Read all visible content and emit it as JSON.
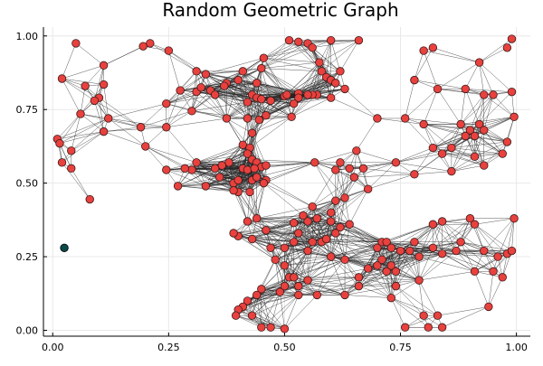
{
  "chart_data": {
    "type": "scatter",
    "title": "Random Geometric Graph",
    "xlabel": "",
    "ylabel": "",
    "xlim": [
      -0.02,
      1.03
    ],
    "ylim": [
      -0.02,
      1.03
    ],
    "grid": true,
    "legend": "none",
    "x_ticks": [
      {
        "value": 0.0,
        "label": "0.00"
      },
      {
        "value": 0.25,
        "label": "0.25"
      },
      {
        "value": 0.5,
        "label": "0.50"
      },
      {
        "value": 0.75,
        "label": "0.75"
      },
      {
        "value": 1.0,
        "label": "1.00"
      }
    ],
    "y_ticks": [
      {
        "value": 0.0,
        "label": "0.00"
      },
      {
        "value": 0.25,
        "label": "0.25"
      },
      {
        "value": 0.5,
        "label": "0.50"
      },
      {
        "value": 0.75,
        "label": "0.75"
      },
      {
        "value": 1.0,
        "label": "1.00"
      }
    ],
    "edge_threshold": 0.14,
    "colors": {
      "node": "#e8413e",
      "node_stroke": "#3a1a1a",
      "isolated_node": "#0b4a4a",
      "edge": "#222222",
      "grid": "#e8e8e8",
      "axis": "#000000"
    },
    "isolated_nodes": [
      [
        0.025,
        0.28
      ]
    ],
    "nodes": [
      [
        0.05,
        0.975
      ],
      [
        0.02,
        0.855
      ],
      [
        0.11,
        0.9
      ],
      [
        0.1,
        0.79
      ],
      [
        0.11,
        0.835
      ],
      [
        0.07,
        0.83
      ],
      [
        0.09,
        0.78
      ],
      [
        0.06,
        0.735
      ],
      [
        0.12,
        0.72
      ],
      [
        0.11,
        0.675
      ],
      [
        0.01,
        0.65
      ],
      [
        0.015,
        0.635
      ],
      [
        0.04,
        0.61
      ],
      [
        0.02,
        0.57
      ],
      [
        0.04,
        0.55
      ],
      [
        0.08,
        0.445
      ],
      [
        0.195,
        0.965
      ],
      [
        0.21,
        0.975
      ],
      [
        0.25,
        0.95
      ],
      [
        0.19,
        0.69
      ],
      [
        0.2,
        0.625
      ],
      [
        0.245,
        0.69
      ],
      [
        0.245,
        0.77
      ],
      [
        0.245,
        0.545
      ],
      [
        0.275,
        0.815
      ],
      [
        0.31,
        0.88
      ],
      [
        0.33,
        0.87
      ],
      [
        0.3,
        0.745
      ],
      [
        0.31,
        0.81
      ],
      [
        0.32,
        0.825
      ],
      [
        0.34,
        0.815
      ],
      [
        0.35,
        0.8
      ],
      [
        0.375,
        0.84
      ],
      [
        0.37,
        0.83
      ],
      [
        0.4,
        0.85
      ],
      [
        0.375,
        0.72
      ],
      [
        0.41,
        0.88
      ],
      [
        0.44,
        0.84
      ],
      [
        0.45,
        0.89
      ],
      [
        0.455,
        0.925
      ],
      [
        0.43,
        0.8
      ],
      [
        0.44,
        0.79
      ],
      [
        0.45,
        0.785
      ],
      [
        0.47,
        0.78
      ],
      [
        0.42,
        0.775
      ],
      [
        0.42,
        0.72
      ],
      [
        0.46,
        0.73
      ],
      [
        0.445,
        0.715
      ],
      [
        0.5,
        0.795
      ],
      [
        0.505,
        0.8
      ],
      [
        0.53,
        0.805
      ],
      [
        0.53,
        0.79
      ],
      [
        0.52,
        0.77
      ],
      [
        0.515,
        0.725
      ],
      [
        0.51,
        0.985
      ],
      [
        0.53,
        0.98
      ],
      [
        0.55,
        0.975
      ],
      [
        0.56,
        0.96
      ],
      [
        0.575,
        0.91
      ],
      [
        0.58,
        0.88
      ],
      [
        0.6,
        0.985
      ],
      [
        0.59,
        0.86
      ],
      [
        0.6,
        0.85
      ],
      [
        0.61,
        0.84
      ],
      [
        0.62,
        0.88
      ],
      [
        0.63,
        0.82
      ],
      [
        0.6,
        0.79
      ],
      [
        0.57,
        0.8
      ],
      [
        0.56,
        0.8
      ],
      [
        0.55,
        0.8
      ],
      [
        0.66,
        0.985
      ],
      [
        0.41,
        0.63
      ],
      [
        0.43,
        0.67
      ],
      [
        0.425,
        0.62
      ],
      [
        0.42,
        0.6
      ],
      [
        0.43,
        0.58
      ],
      [
        0.38,
        0.57
      ],
      [
        0.365,
        0.56
      ],
      [
        0.35,
        0.55
      ],
      [
        0.3,
        0.545
      ],
      [
        0.285,
        0.55
      ],
      [
        0.31,
        0.57
      ],
      [
        0.36,
        0.52
      ],
      [
        0.33,
        0.49
      ],
      [
        0.39,
        0.5
      ],
      [
        0.4,
        0.51
      ],
      [
        0.41,
        0.55
      ],
      [
        0.42,
        0.545
      ],
      [
        0.44,
        0.57
      ],
      [
        0.45,
        0.555
      ],
      [
        0.46,
        0.56
      ],
      [
        0.435,
        0.55
      ],
      [
        0.425,
        0.47
      ],
      [
        0.43,
        0.51
      ],
      [
        0.44,
        0.52
      ],
      [
        0.46,
        0.51
      ],
      [
        0.455,
        0.5
      ],
      [
        0.4,
        0.47
      ],
      [
        0.39,
        0.475
      ],
      [
        0.27,
        0.49
      ],
      [
        0.565,
        0.57
      ],
      [
        0.655,
        0.61
      ],
      [
        0.67,
        0.55
      ],
      [
        0.65,
        0.52
      ],
      [
        0.64,
        0.55
      ],
      [
        0.62,
        0.57
      ],
      [
        0.61,
        0.545
      ],
      [
        0.68,
        0.48
      ],
      [
        0.63,
        0.45
      ],
      [
        0.61,
        0.44
      ],
      [
        0.56,
        0.42
      ],
      [
        0.6,
        0.4
      ],
      [
        0.57,
        0.38
      ],
      [
        0.55,
        0.37
      ],
      [
        0.54,
        0.39
      ],
      [
        0.52,
        0.365
      ],
      [
        0.53,
        0.33
      ],
      [
        0.56,
        0.3
      ],
      [
        0.58,
        0.3
      ],
      [
        0.61,
        0.33
      ],
      [
        0.62,
        0.35
      ],
      [
        0.64,
        0.36
      ],
      [
        0.6,
        0.37
      ],
      [
        0.59,
        0.31
      ],
      [
        0.55,
        0.27
      ],
      [
        0.6,
        0.25
      ],
      [
        0.63,
        0.24
      ],
      [
        0.42,
        0.37
      ],
      [
        0.44,
        0.38
      ],
      [
        0.46,
        0.34
      ],
      [
        0.4,
        0.32
      ],
      [
        0.39,
        0.33
      ],
      [
        0.43,
        0.31
      ],
      [
        0.47,
        0.28
      ],
      [
        0.5,
        0.28
      ],
      [
        0.52,
        0.3
      ],
      [
        0.48,
        0.24
      ],
      [
        0.5,
        0.22
      ],
      [
        0.51,
        0.18
      ],
      [
        0.52,
        0.18
      ],
      [
        0.53,
        0.15
      ],
      [
        0.55,
        0.17
      ],
      [
        0.5,
        0.15
      ],
      [
        0.49,
        0.13
      ],
      [
        0.45,
        0.14
      ],
      [
        0.44,
        0.12
      ],
      [
        0.42,
        0.1
      ],
      [
        0.41,
        0.08
      ],
      [
        0.4,
        0.07
      ],
      [
        0.395,
        0.05
      ],
      [
        0.43,
        0.05
      ],
      [
        0.45,
        0.01
      ],
      [
        0.47,
        0.01
      ],
      [
        0.5,
        0.005
      ],
      [
        0.53,
        0.12
      ],
      [
        0.57,
        0.12
      ],
      [
        0.63,
        0.12
      ],
      [
        0.7,
        0.28
      ],
      [
        0.71,
        0.3
      ],
      [
        0.72,
        0.3
      ],
      [
        0.73,
        0.28
      ],
      [
        0.72,
        0.2
      ],
      [
        0.7,
        0.22
      ],
      [
        0.71,
        0.24
      ],
      [
        0.73,
        0.22
      ],
      [
        0.75,
        0.27
      ],
      [
        0.77,
        0.27
      ],
      [
        0.79,
        0.25
      ],
      [
        0.78,
        0.3
      ],
      [
        0.82,
        0.28
      ],
      [
        0.82,
        0.36
      ],
      [
        0.84,
        0.37
      ],
      [
        0.84,
        0.26
      ],
      [
        0.87,
        0.27
      ],
      [
        0.88,
        0.3
      ],
      [
        0.9,
        0.38
      ],
      [
        0.91,
        0.36
      ],
      [
        0.93,
        0.27
      ],
      [
        0.96,
        0.25
      ],
      [
        0.98,
        0.26
      ],
      [
        0.995,
        0.38
      ],
      [
        0.99,
        0.27
      ],
      [
        0.95,
        0.2
      ],
      [
        0.97,
        0.18
      ],
      [
        0.91,
        0.2
      ],
      [
        0.68,
        0.21
      ],
      [
        0.66,
        0.15
      ],
      [
        0.66,
        0.18
      ],
      [
        0.74,
        0.15
      ],
      [
        0.73,
        0.11
      ],
      [
        0.74,
        0.2
      ],
      [
        0.79,
        0.17
      ],
      [
        0.8,
        0.05
      ],
      [
        0.76,
        0.01
      ],
      [
        0.81,
        0.01
      ],
      [
        0.83,
        0.05
      ],
      [
        0.84,
        0.01
      ],
      [
        0.94,
        0.08
      ],
      [
        0.7,
        0.72
      ],
      [
        0.76,
        0.72
      ],
      [
        0.8,
        0.7
      ],
      [
        0.78,
        0.85
      ],
      [
        0.83,
        0.82
      ],
      [
        0.8,
        0.95
      ],
      [
        0.82,
        0.96
      ],
      [
        0.89,
        0.82
      ],
      [
        0.93,
        0.8
      ],
      [
        0.95,
        0.8
      ],
      [
        0.99,
        0.81
      ],
      [
        0.99,
        0.99
      ],
      [
        0.98,
        0.96
      ],
      [
        0.92,
        0.91
      ],
      [
        0.92,
        0.7
      ],
      [
        0.88,
        0.7
      ],
      [
        0.9,
        0.68
      ],
      [
        0.89,
        0.66
      ],
      [
        0.91,
        0.66
      ],
      [
        0.93,
        0.68
      ],
      [
        0.91,
        0.59
      ],
      [
        0.93,
        0.56
      ],
      [
        0.97,
        0.6
      ],
      [
        0.98,
        0.64
      ],
      [
        0.995,
        0.725
      ],
      [
        0.86,
        0.62
      ],
      [
        0.84,
        0.6
      ],
      [
        0.86,
        0.54
      ],
      [
        0.82,
        0.62
      ],
      [
        0.78,
        0.53
      ],
      [
        0.74,
        0.57
      ]
    ]
  }
}
